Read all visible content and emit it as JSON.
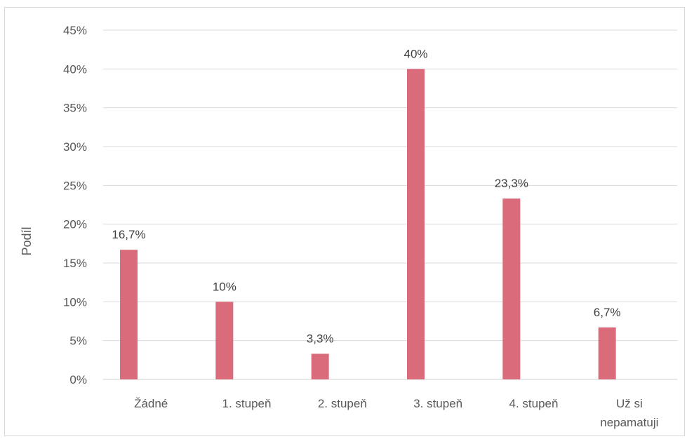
{
  "chart_data": {
    "type": "bar",
    "categories": [
      "Žádné",
      "1. stupeň",
      "2. stupeň",
      "3. stupeň",
      "4. stupeň",
      [
        "Už si",
        "nepamatuji"
      ]
    ],
    "values": [
      16.7,
      10,
      3.3,
      40,
      23.3,
      6.7
    ],
    "data_labels": [
      "16,7%",
      "10%",
      "3,3%",
      "40%",
      "23,3%",
      "6,7%"
    ],
    "ylabel": "Podíl",
    "xlabel": "",
    "title": "",
    "ylim": [
      0,
      45
    ],
    "yticks": [
      0,
      5,
      10,
      15,
      20,
      25,
      30,
      35,
      40,
      45
    ],
    "ytick_labels": [
      "0%",
      "5%",
      "10%",
      "15%",
      "20%",
      "25%",
      "30%",
      "35%",
      "40%",
      "45%"
    ],
    "grid": true,
    "legend": "none",
    "bar_color": "#d96b7a",
    "grid_color": "#d9d9d9"
  }
}
